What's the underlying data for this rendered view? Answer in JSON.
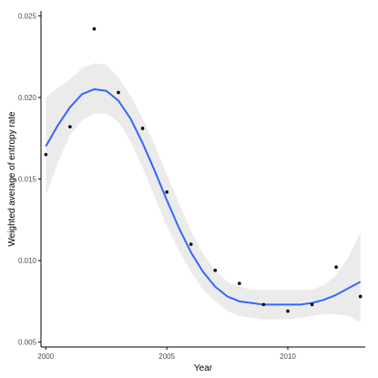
{
  "chart_data": {
    "type": "scatter",
    "title": "",
    "xlabel": "Year",
    "ylabel": "Weighted average of entropy rate",
    "xlim": [
      1999.8,
      2013.2
    ],
    "ylim": [
      0.0047,
      0.0253
    ],
    "x_ticks": [
      2000,
      2005,
      2010
    ],
    "x_tick_labels": [
      "2000",
      "2005",
      "2010"
    ],
    "y_ticks": [
      0.005,
      0.01,
      0.015,
      0.02,
      0.025
    ],
    "y_tick_labels": [
      "0.005",
      "0.010",
      "0.015",
      "0.020",
      "0.025"
    ],
    "grid": false,
    "points": {
      "x": [
        2000,
        2001,
        2002,
        2003,
        2004,
        2005,
        2006,
        2007,
        2008,
        2009,
        2010,
        2011,
        2012,
        2013
      ],
      "y": [
        0.0165,
        0.0182,
        0.0242,
        0.0203,
        0.0181,
        0.0142,
        0.011,
        0.0094,
        0.0086,
        0.0073,
        0.0069,
        0.0073,
        0.0096,
        0.0078
      ],
      "color": "#000000"
    },
    "smooth": {
      "x": [
        2000,
        2000.5,
        2001,
        2001.5,
        2002,
        2002.5,
        2003,
        2003.5,
        2004,
        2004.5,
        2005,
        2005.5,
        2006,
        2006.5,
        2007,
        2007.5,
        2008,
        2008.5,
        2009,
        2009.5,
        2010,
        2010.5,
        2011,
        2011.5,
        2012,
        2012.5,
        2013
      ],
      "y": [
        0.017,
        0.0183,
        0.0194,
        0.0202,
        0.0205,
        0.0204,
        0.0198,
        0.0187,
        0.0172,
        0.0155,
        0.0137,
        0.012,
        0.0105,
        0.0093,
        0.0084,
        0.0078,
        0.0075,
        0.0074,
        0.0073,
        0.0073,
        0.0073,
        0.0073,
        0.0074,
        0.0076,
        0.0079,
        0.0083,
        0.0087
      ],
      "lower": [
        0.014,
        0.016,
        0.0177,
        0.0186,
        0.019,
        0.019,
        0.0185,
        0.0173,
        0.0157,
        0.0139,
        0.0121,
        0.0106,
        0.0093,
        0.0082,
        0.0075,
        0.0069,
        0.0066,
        0.0065,
        0.0064,
        0.0064,
        0.0064,
        0.0065,
        0.0066,
        0.0067,
        0.0067,
        0.0066,
        0.0062
      ],
      "upper": [
        0.02,
        0.0206,
        0.0211,
        0.0218,
        0.0221,
        0.022,
        0.0212,
        0.0201,
        0.0187,
        0.0171,
        0.0153,
        0.0135,
        0.0118,
        0.0104,
        0.0094,
        0.0087,
        0.0084,
        0.0082,
        0.0082,
        0.0082,
        0.0082,
        0.0082,
        0.0082,
        0.0085,
        0.0091,
        0.0102,
        0.0117
      ],
      "line_color": "#3366ff",
      "band_color": "#ebebeb"
    }
  }
}
